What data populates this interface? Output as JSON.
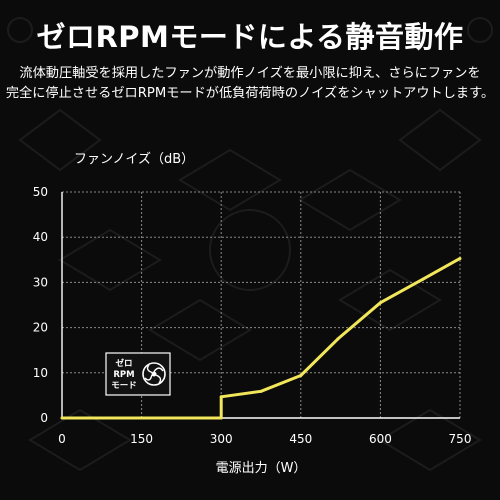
{
  "header": {
    "title": "ゼロRPMモードによる静音動作",
    "subtitle_line1": "流体動圧軸受を採用したファンが動作ノイズを最小限に抑え、さらにファンを",
    "subtitle_line2": "完全に停止させるゼロRPMモードが低負荷荷時のノイズをシャットアウトします。"
  },
  "badge": {
    "line1": "ゼロ",
    "line2": "RPM",
    "line3": "モード",
    "icon": "fan-icon"
  },
  "colors": {
    "background": "#0b0b0b",
    "line": "#f2e65a",
    "grid": "#8a8a8a",
    "text": "#ffffff"
  },
  "chart_data": {
    "type": "line",
    "xlabel": "電源出力（W）",
    "ylabel": "ファンノイズ（dB）",
    "xlim": [
      0,
      750
    ],
    "ylim": [
      0,
      50
    ],
    "xticks": [
      0,
      150,
      300,
      450,
      600,
      750
    ],
    "yticks": [
      0,
      10,
      20,
      30,
      40,
      50
    ],
    "grid": true,
    "x": [
      0,
      300,
      300,
      375,
      450,
      520,
      600,
      680,
      750
    ],
    "y": [
      0,
      0,
      4.7,
      5.9,
      9.4,
      17.5,
      25.5,
      30.7,
      35.3
    ]
  }
}
